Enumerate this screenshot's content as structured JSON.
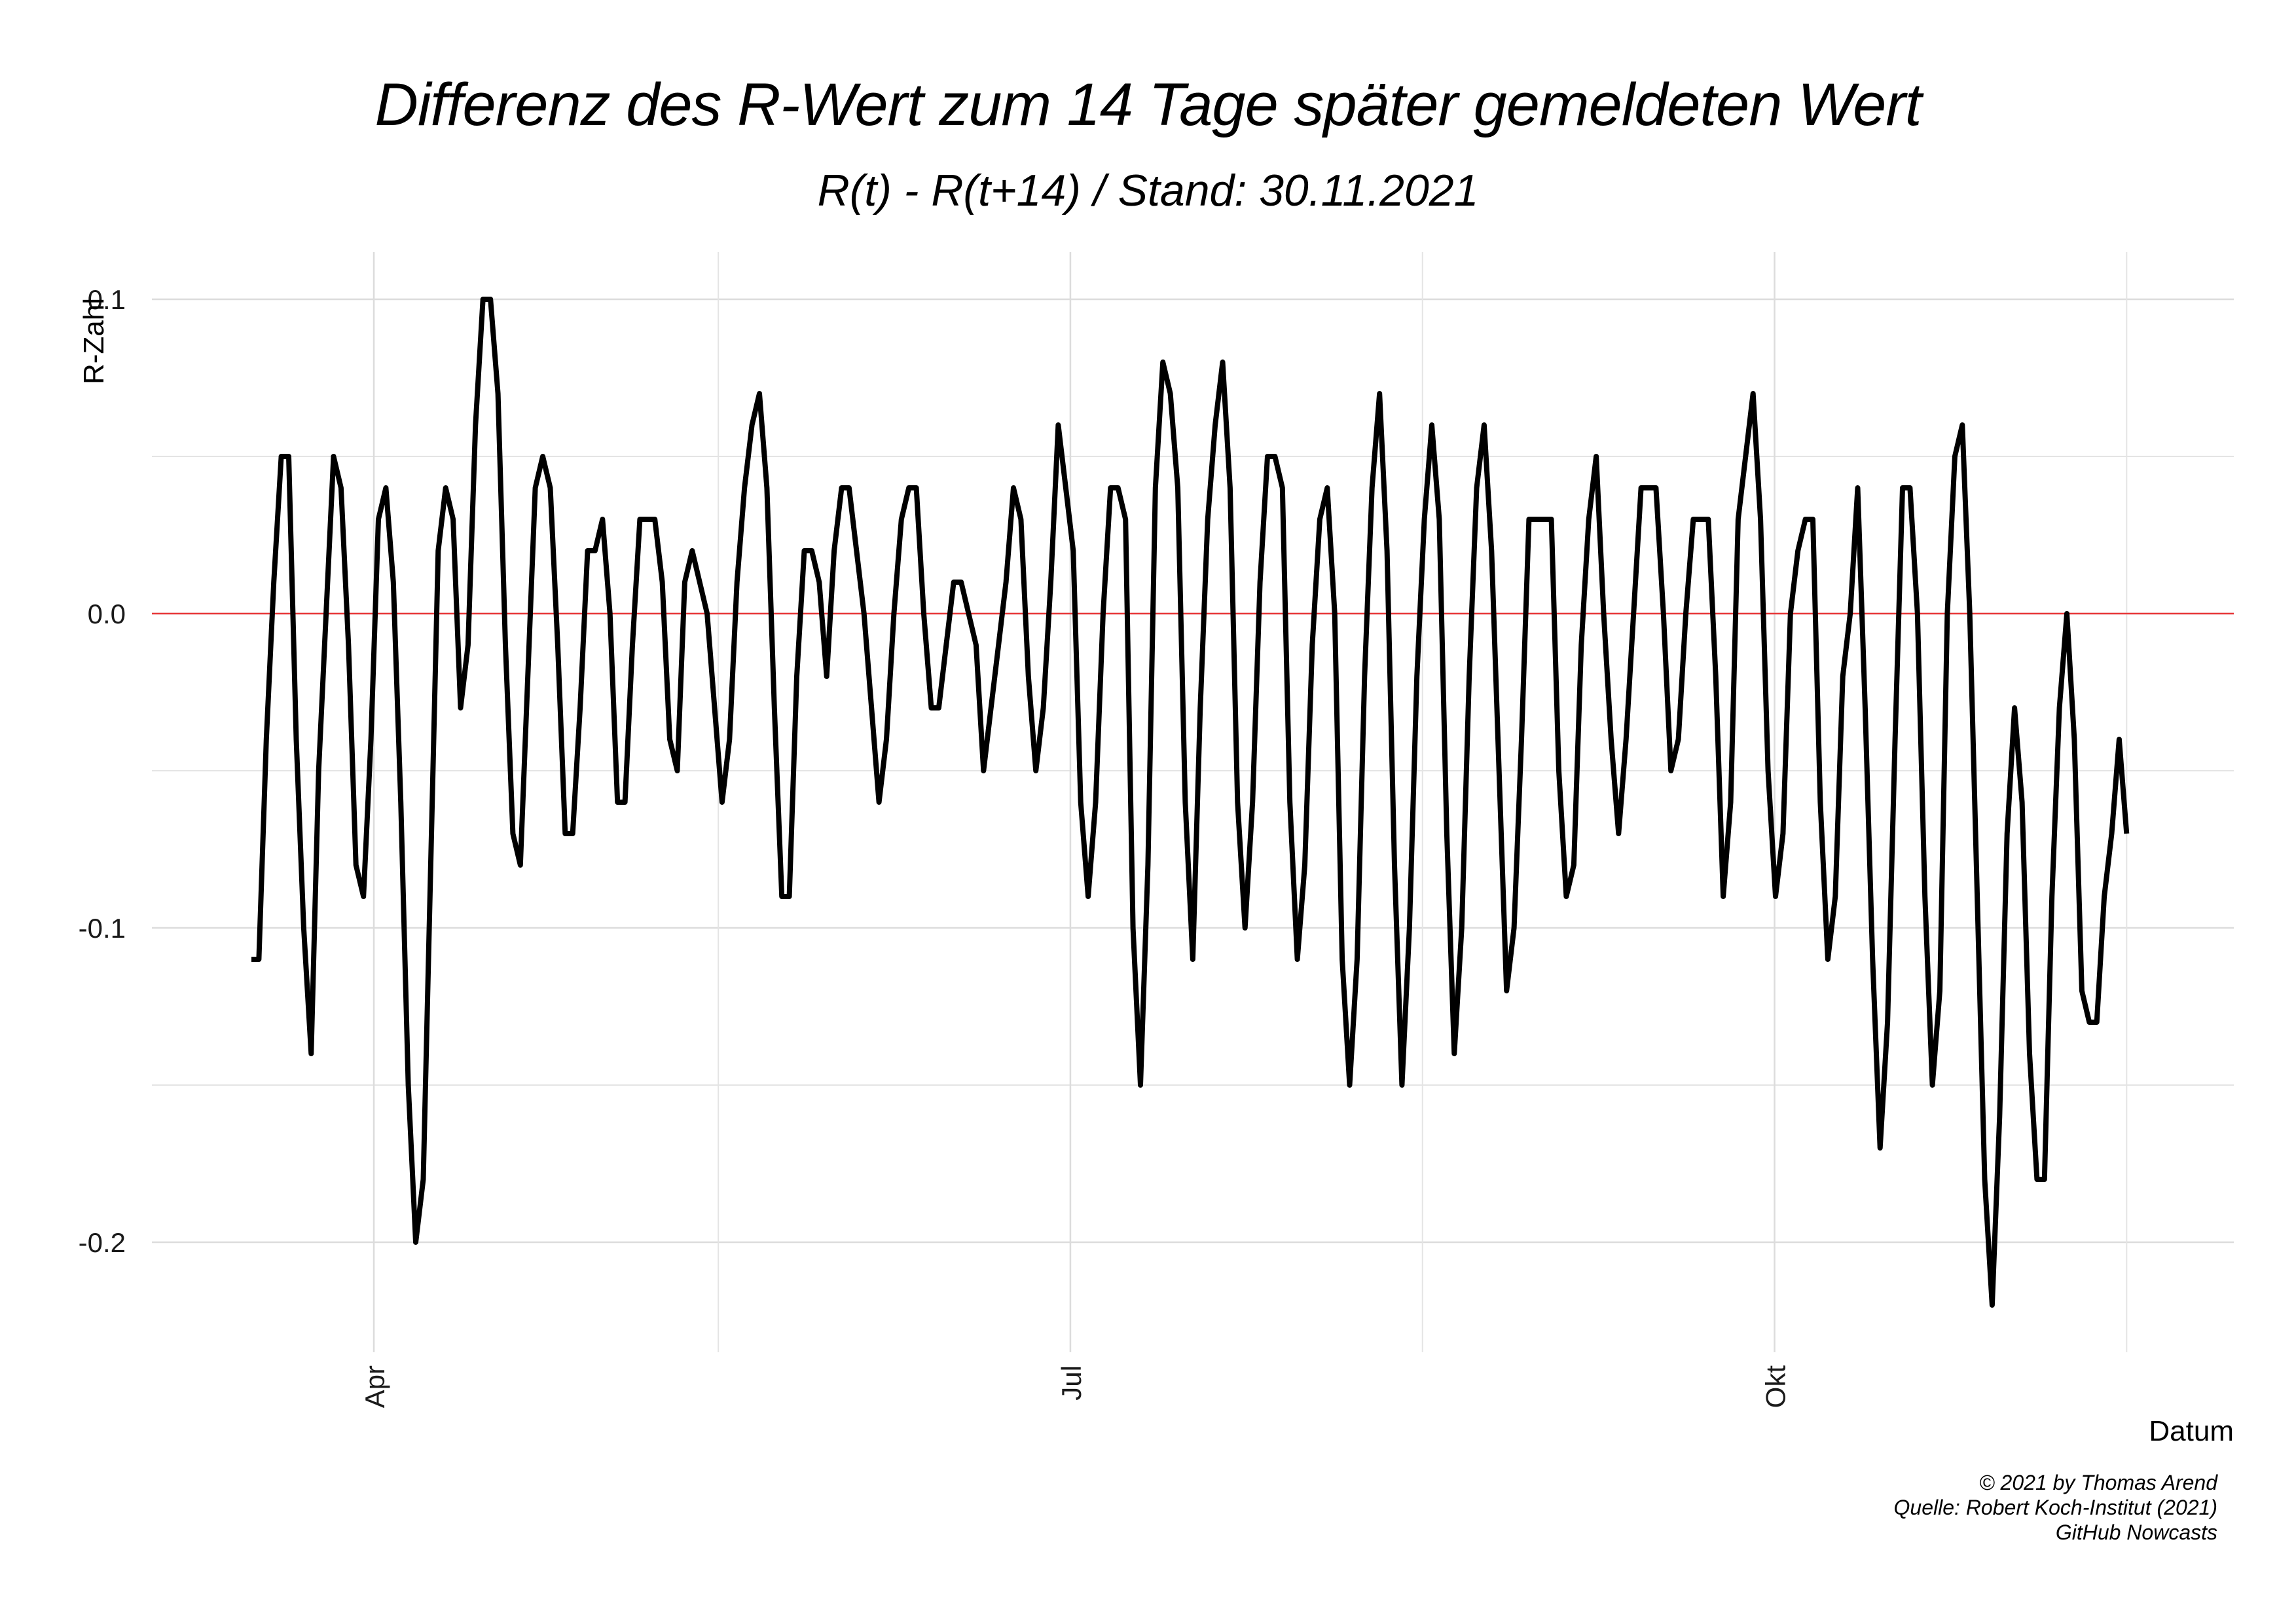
{
  "title": "Differenz des R-Wert zum 14 Tage später gemeldeten Wert",
  "subtitle": "R(t) - R(t+14) / Stand: 30.11.2021",
  "caption": [
    "© 2021 by Thomas Arend",
    "Quelle: Robert Koch-Institut (2021)",
    "GitHub Nowcasts"
  ],
  "colors": {
    "line": "#000000",
    "zero_line": "#e8393a",
    "grid": "#e4e4e4"
  },
  "chart_data": {
    "type": "line",
    "xlabel": "Datum",
    "ylabel": "R-Zahl",
    "x_start": "2021-03-16",
    "x_end": "2021-11-16",
    "xlim": [
      "2021-03-03",
      "2021-11-30"
    ],
    "ylim": [
      -0.235,
      0.115
    ],
    "x_ticks": [
      {
        "date": "2021-04-01",
        "label": "Apr"
      },
      {
        "date": "2021-07-01",
        "label": "Jul"
      },
      {
        "date": "2021-10-01",
        "label": "Okt"
      }
    ],
    "x_minor_gridlines": [
      "2021-05-16",
      "2021-08-16",
      "2021-11-16"
    ],
    "y_ticks": [
      0.1,
      0.0,
      -0.1,
      -0.2
    ],
    "y_tick_labels": [
      "0.1",
      "0.0",
      "-0.1",
      "-0.2"
    ],
    "reference_line": 0.0,
    "grid": true,
    "series": [
      {
        "values": [
          -0.11,
          -0.11,
          -0.04,
          0.01,
          0.05,
          0.05,
          -0.04,
          -0.1,
          -0.14,
          -0.05,
          0.0,
          0.05,
          0.04,
          -0.01,
          -0.08,
          -0.09,
          -0.04,
          0.03,
          0.04,
          0.01,
          -0.06,
          -0.15,
          -0.2,
          -0.18,
          -0.08,
          0.02,
          0.04,
          0.03,
          -0.03,
          -0.01,
          0.06,
          0.1,
          0.1,
          0.07,
          -0.01,
          -0.07,
          -0.08,
          -0.02,
          0.04,
          0.05,
          0.04,
          -0.01,
          -0.07,
          -0.07,
          -0.03,
          0.02,
          0.02,
          0.03,
          0.0,
          -0.06,
          -0.06,
          -0.01,
          0.03,
          0.03,
          0.03,
          0.01,
          -0.04,
          -0.05,
          0.01,
          0.02,
          0.01,
          0.0,
          -0.03,
          -0.06,
          -0.04,
          0.01,
          0.04,
          0.06,
          0.07,
          0.04,
          -0.03,
          -0.09,
          -0.09,
          -0.02,
          0.02,
          0.02,
          0.01,
          -0.02,
          0.02,
          0.04,
          0.04,
          0.02,
          0.0,
          -0.03,
          -0.06,
          -0.04,
          0.0,
          0.03,
          0.04,
          0.04,
          0.0,
          -0.03,
          -0.03,
          -0.01,
          0.01,
          0.01,
          0.0,
          -0.01,
          -0.05,
          -0.03,
          -0.01,
          0.01,
          0.04,
          0.03,
          -0.02,
          -0.05,
          -0.03,
          0.01,
          0.06,
          0.04,
          0.02,
          -0.06,
          -0.09,
          -0.06,
          0.0,
          0.04,
          0.04,
          0.03,
          -0.1,
          -0.15,
          -0.08,
          0.04,
          0.08,
          0.07,
          0.04,
          -0.06,
          -0.11,
          -0.03,
          0.03,
          0.06,
          0.08,
          0.04,
          -0.06,
          -0.1,
          -0.06,
          0.01,
          0.05,
          0.05,
          0.04,
          -0.06,
          -0.11,
          -0.08,
          -0.01,
          0.03,
          0.04,
          0.0,
          -0.11,
          -0.15,
          -0.11,
          -0.02,
          0.04,
          0.07,
          0.02,
          -0.08,
          -0.15,
          -0.1,
          -0.02,
          0.03,
          0.06,
          0.03,
          -0.07,
          -0.14,
          -0.1,
          -0.02,
          0.04,
          0.06,
          0.02,
          -0.05,
          -0.12,
          -0.1,
          -0.04,
          0.03,
          0.03,
          0.03,
          0.03,
          -0.05,
          -0.09,
          -0.08,
          -0.01,
          0.03,
          0.05,
          0.0,
          -0.04,
          -0.07,
          -0.04,
          0.0,
          0.04,
          0.04,
          0.04,
          0.0,
          -0.05,
          -0.04,
          0.0,
          0.03,
          0.03,
          0.03,
          -0.02,
          -0.09,
          -0.06,
          0.03,
          0.05,
          0.07,
          0.03,
          -0.05,
          -0.09,
          -0.07,
          0.0,
          0.02,
          0.03,
          0.03,
          -0.06,
          -0.11,
          -0.09,
          -0.02,
          0.0,
          0.04,
          -0.03,
          -0.11,
          -0.17,
          -0.13,
          -0.04,
          0.04,
          0.04,
          0.0,
          -0.09,
          -0.15,
          -0.12,
          0.0,
          0.05,
          0.06,
          0.0,
          -0.09,
          -0.18,
          -0.22,
          -0.16,
          -0.07,
          -0.03,
          -0.06,
          -0.14,
          -0.18,
          -0.18,
          -0.09,
          -0.03,
          0.0,
          -0.04,
          -0.12,
          -0.13,
          -0.13,
          -0.09,
          -0.07,
          -0.04,
          -0.07
        ]
      }
    ]
  }
}
